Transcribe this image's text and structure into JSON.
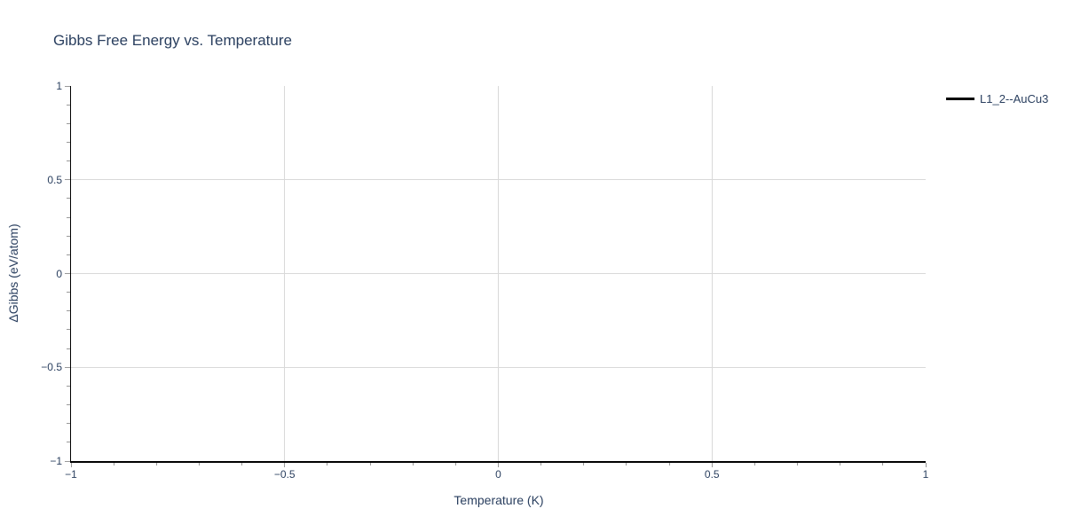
{
  "colors": {
    "text": "#2a3f5f",
    "grid": "#d9d9d9",
    "axis_line": "#000000",
    "tick": "#999999",
    "background": "#ffffff",
    "legend_line": "#000000"
  },
  "legend": {
    "items": [
      {
        "label": "L1_2--AuCu3",
        "line_color": "#000000"
      }
    ]
  },
  "chart_data": {
    "type": "line",
    "title": "Gibbs Free Energy vs. Temperature",
    "xlabel": "Temperature (K)",
    "ylabel": "ΔGibbs (eV/atom)",
    "xlim": [
      -1,
      1
    ],
    "ylim": [
      -1,
      1
    ],
    "x_ticks": [
      -1,
      -0.5,
      0,
      0.5,
      1
    ],
    "x_tick_labels": [
      "−1",
      "−0.5",
      "0",
      "0.5",
      "1"
    ],
    "y_ticks": [
      -1,
      -0.5,
      0,
      0.5,
      1
    ],
    "y_tick_labels": [
      "−1",
      "−0.5",
      "0",
      "0.5",
      "1"
    ],
    "minor_tick_step": 0.1,
    "grid": true,
    "legend_position": "outside-top-right",
    "series": [
      {
        "name": "L1_2--AuCu3",
        "color": "#000000",
        "x": [],
        "values": []
      }
    ]
  }
}
